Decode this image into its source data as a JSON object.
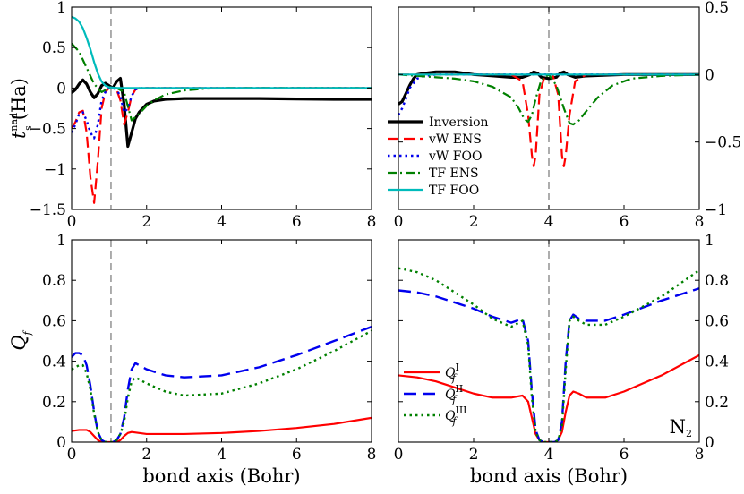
{
  "chart_data": [
    {
      "id": "tl",
      "type": "line",
      "title": "",
      "xlabel": "",
      "ylabel": "t_s^nad (Ha)",
      "ylabel_main": "t",
      "ylabel_sub": "s",
      "ylabel_sup": "nad",
      "ylabel_unit": "(Ha)",
      "xlim": [
        0,
        8
      ],
      "ylim": [
        -1.5,
        1
      ],
      "xticks": [
        "0",
        "2",
        "4",
        "6",
        "8"
      ],
      "yticks": [
        "-1.5",
        "-1",
        "-0.5",
        "0",
        "0.5",
        "1"
      ],
      "ytick_side": "left",
      "vline_x": 1.05,
      "series": [
        {
          "name": "Inversion",
          "color": "#000000",
          "dash": "",
          "width": 3.2,
          "x": [
            0,
            0.1,
            0.2,
            0.3,
            0.4,
            0.5,
            0.6,
            0.7,
            0.8,
            0.9,
            1.0,
            1.1,
            1.2,
            1.3,
            1.4,
            1.5,
            1.6,
            1.7,
            1.8,
            2.0,
            2.2,
            2.5,
            3,
            4,
            5,
            6,
            7,
            8
          ],
          "y": [
            -0.06,
            -0.02,
            0.05,
            0.1,
            0.05,
            -0.05,
            -0.12,
            -0.07,
            0.03,
            0.06,
            0.03,
            0.0,
            0.08,
            0.12,
            -0.2,
            -0.72,
            -0.55,
            -0.38,
            -0.3,
            -0.2,
            -0.16,
            -0.14,
            -0.13,
            -0.13,
            -0.13,
            -0.135,
            -0.14,
            -0.14
          ]
        },
        {
          "name": "vW ENS",
          "color": "#ff0000",
          "dash": "12,6",
          "width": 2.2,
          "x": [
            0,
            0.1,
            0.2,
            0.3,
            0.4,
            0.5,
            0.6,
            0.7,
            0.8,
            0.9,
            1.0,
            1.1,
            1.2,
            1.3,
            1.4,
            1.5,
            1.6,
            1.7,
            1.8,
            2.0,
            3,
            8
          ],
          "y": [
            -0.5,
            -0.42,
            -0.3,
            -0.28,
            -0.55,
            -1.1,
            -1.42,
            -0.9,
            -0.25,
            -0.05,
            0.0,
            0.0,
            -0.02,
            -0.15,
            -0.45,
            -0.3,
            -0.1,
            -0.02,
            0.0,
            0.0,
            0.0,
            0.0
          ]
        },
        {
          "name": "vW FOO",
          "color": "#0000ee",
          "dash": "2.5,4",
          "width": 2.4,
          "x": [
            0,
            0.1,
            0.2,
            0.3,
            0.4,
            0.5,
            0.6,
            0.7,
            0.8,
            0.9,
            1.0,
            1.1,
            1.2,
            1.3,
            1.4,
            1.5,
            1.6,
            1.7,
            1.8,
            2.0,
            3,
            8
          ],
          "y": [
            -0.55,
            -0.45,
            -0.32,
            -0.3,
            -0.4,
            -0.55,
            -0.62,
            -0.45,
            -0.15,
            -0.05,
            0.0,
            0.0,
            -0.02,
            -0.1,
            -0.3,
            -0.25,
            -0.1,
            -0.02,
            0.0,
            0.0,
            0.0,
            0.0
          ]
        },
        {
          "name": "TF ENS",
          "color": "#008000",
          "dash": "10,4,2,4",
          "width": 2.2,
          "x": [
            0,
            0.2,
            0.4,
            0.6,
            0.8,
            1.0,
            1.2,
            1.4,
            1.6,
            1.8,
            2.0,
            2.2,
            2.5,
            3.0,
            3.5,
            4,
            5,
            6,
            7,
            8
          ],
          "y": [
            0.55,
            0.45,
            0.25,
            0.05,
            -0.05,
            0.0,
            0.0,
            -0.05,
            -0.4,
            -0.32,
            -0.22,
            -0.15,
            -0.08,
            -0.03,
            -0.01,
            0.0,
            0.0,
            0.0,
            0.0,
            0.0
          ]
        },
        {
          "name": "TF FOO",
          "color": "#00bbbb",
          "dash": "",
          "width": 2.2,
          "x": [
            0,
            0.1,
            0.2,
            0.3,
            0.4,
            0.5,
            0.6,
            0.7,
            0.8,
            0.9,
            1.0,
            1.2,
            1.5,
            2,
            3,
            4,
            5,
            6,
            7,
            8
          ],
          "y": [
            0.88,
            0.86,
            0.82,
            0.74,
            0.62,
            0.48,
            0.32,
            0.18,
            0.08,
            0.03,
            0.01,
            0.0,
            0.0,
            0.0,
            0.0,
            0.0,
            0.0,
            0.0,
            0.0,
            0.0
          ]
        }
      ]
    },
    {
      "id": "tr",
      "type": "line",
      "title": "",
      "xlabel": "",
      "ylabel": "",
      "xlim": [
        0,
        8
      ],
      "ylim": [
        -1,
        0.5
      ],
      "xticks": [
        "0",
        "2",
        "4",
        "6",
        "8"
      ],
      "yticks": [
        "-1",
        "-0.5",
        "0",
        "0.5"
      ],
      "ytick_side": "right",
      "vline_x": 4,
      "legend": {
        "placement": "lower-left",
        "entries": [
          {
            "label": "Inversion",
            "color": "#000000",
            "dash": "",
            "width": 3.2
          },
          {
            "label": "vW ENS",
            "color": "#ff0000",
            "dash": "12,6",
            "width": 2.2
          },
          {
            "label": "vW FOO",
            "color": "#0000ee",
            "dash": "2.5,4",
            "width": 2.4
          },
          {
            "label": "TF ENS",
            "color": "#008000",
            "dash": "10,4,2,4",
            "width": 2.2
          },
          {
            "label": "TF FOO",
            "color": "#00bbbb",
            "dash": "",
            "width": 2.2
          }
        ]
      },
      "series": [
        {
          "name": "Inversion",
          "color": "#000000",
          "dash": "",
          "width": 3.2,
          "x": [
            0,
            0.1,
            0.2,
            0.3,
            0.4,
            0.5,
            0.7,
            1.0,
            1.5,
            2,
            2.5,
            3,
            3.3,
            3.5,
            3.6,
            3.7,
            3.8,
            4.0,
            4.2,
            4.3,
            4.4,
            4.5,
            4.7,
            5,
            6,
            7,
            8
          ],
          "y": [
            -0.22,
            -0.2,
            -0.14,
            -0.08,
            -0.03,
            0.0,
            0.01,
            0.02,
            0.02,
            0.0,
            -0.01,
            -0.02,
            -0.02,
            0.0,
            0.02,
            0.01,
            -0.02,
            -0.03,
            -0.02,
            0.01,
            0.02,
            0.0,
            -0.02,
            -0.01,
            0.0,
            0.0,
            0.0
          ]
        },
        {
          "name": "vW ENS",
          "color": "#ff0000",
          "dash": "12,6",
          "width": 2.2,
          "x": [
            0,
            0.2,
            0.5,
            1,
            2,
            3,
            3.3,
            3.45,
            3.55,
            3.6,
            3.65,
            3.75,
            3.9,
            4.1,
            4.25,
            4.35,
            4.4,
            4.45,
            4.55,
            4.7,
            5,
            8
          ],
          "y": [
            0.0,
            0.0,
            0.0,
            0.0,
            0.0,
            0.0,
            -0.05,
            -0.3,
            -0.6,
            -0.68,
            -0.6,
            -0.15,
            0.0,
            0.0,
            -0.15,
            -0.6,
            -0.68,
            -0.6,
            -0.3,
            -0.05,
            0.0,
            0.0
          ]
        },
        {
          "name": "vW FOO",
          "color": "#0000ee",
          "dash": "2.5,4",
          "width": 2.4,
          "x": [
            0,
            0.1,
            0.2,
            0.3,
            0.5,
            0.7,
            1,
            2,
            8
          ],
          "y": [
            -0.3,
            -0.25,
            -0.18,
            -0.1,
            -0.03,
            -0.01,
            0.0,
            0.0,
            0.0
          ]
        },
        {
          "name": "TF ENS",
          "color": "#008000",
          "dash": "10,4,2,4",
          "width": 2.2,
          "x": [
            0,
            0.5,
            1,
            1.5,
            2,
            2.5,
            3,
            3.2,
            3.35,
            3.45,
            3.55,
            3.65,
            3.8,
            4.0,
            4.2,
            4.4,
            4.55,
            4.65,
            4.8,
            5.0,
            5.3,
            5.7,
            6.2,
            7,
            8
          ],
          "y": [
            0.0,
            -0.01,
            -0.02,
            -0.03,
            -0.05,
            -0.09,
            -0.17,
            -0.25,
            -0.33,
            -0.35,
            -0.3,
            -0.18,
            -0.04,
            0.0,
            -0.08,
            -0.25,
            -0.36,
            -0.37,
            -0.34,
            -0.27,
            -0.17,
            -0.08,
            -0.03,
            -0.01,
            0.0
          ]
        },
        {
          "name": "TF FOO",
          "color": "#00bbbb",
          "dash": "",
          "width": 2.2,
          "x": [
            0,
            0.5,
            1,
            2,
            4,
            6,
            8
          ],
          "y": [
            0.0,
            0.0,
            0.0,
            0.0,
            0.0,
            0.0,
            0.0
          ]
        }
      ]
    },
    {
      "id": "bl",
      "type": "line",
      "title": "",
      "xlabel": "bond axis (Bohr)",
      "ylabel": "Q_f",
      "ylabel_main": "Q",
      "ylabel_sub": "f",
      "xlim": [
        0,
        8
      ],
      "ylim": [
        0,
        1
      ],
      "xticks": [
        "0",
        "2",
        "4",
        "6",
        "8"
      ],
      "yticks": [
        "0",
        "0.2",
        "0.4",
        "0.6",
        "0.8",
        "1"
      ],
      "ytick_side": "left",
      "vline_x": 1.05,
      "series": [
        {
          "name": "Q_f^I",
          "color": "#ff0000",
          "dash": "",
          "width": 2.2,
          "x": [
            0,
            0.2,
            0.4,
            0.5,
            0.6,
            0.7,
            0.8,
            0.9,
            1.0,
            1.1,
            1.2,
            1.3,
            1.4,
            1.5,
            1.6,
            1.8,
            2,
            3,
            4,
            5,
            6,
            7,
            8
          ],
          "y": [
            0.055,
            0.06,
            0.06,
            0.05,
            0.03,
            0.01,
            0.0,
            0.0,
            0.0,
            0.0,
            0.0,
            0.01,
            0.03,
            0.045,
            0.05,
            0.045,
            0.04,
            0.04,
            0.045,
            0.055,
            0.07,
            0.09,
            0.12
          ]
        },
        {
          "name": "Q_f^II",
          "color": "#0000ee",
          "dash": "14,7",
          "width": 2.4,
          "x": [
            0,
            0.1,
            0.2,
            0.3,
            0.4,
            0.5,
            0.6,
            0.7,
            0.8,
            0.9,
            1.0,
            1.1,
            1.2,
            1.3,
            1.4,
            1.5,
            1.6,
            1.7,
            1.8,
            2.0,
            2.5,
            3.0,
            4,
            5,
            6,
            7,
            8
          ],
          "y": [
            0.42,
            0.44,
            0.44,
            0.43,
            0.38,
            0.28,
            0.15,
            0.05,
            0.01,
            0.0,
            0.0,
            0.0,
            0.01,
            0.04,
            0.12,
            0.26,
            0.36,
            0.39,
            0.38,
            0.36,
            0.33,
            0.32,
            0.33,
            0.37,
            0.43,
            0.5,
            0.57
          ]
        },
        {
          "name": "Q_f^III",
          "color": "#008000",
          "dash": "2.5,4",
          "width": 2.4,
          "x": [
            0,
            0.1,
            0.2,
            0.3,
            0.4,
            0.5,
            0.6,
            0.7,
            0.8,
            0.9,
            1.0,
            1.1,
            1.2,
            1.3,
            1.4,
            1.5,
            1.6,
            1.7,
            1.8,
            2.0,
            2.5,
            3.0,
            4,
            5,
            6,
            7,
            8
          ],
          "y": [
            0.36,
            0.37,
            0.38,
            0.38,
            0.34,
            0.26,
            0.14,
            0.05,
            0.01,
            0.0,
            0.0,
            0.0,
            0.01,
            0.04,
            0.1,
            0.22,
            0.3,
            0.32,
            0.31,
            0.29,
            0.25,
            0.23,
            0.24,
            0.29,
            0.36,
            0.45,
            0.55
          ]
        }
      ]
    },
    {
      "id": "br",
      "type": "line",
      "title": "",
      "xlabel": "bond axis (Bohr)",
      "ylabel": "",
      "xlim": [
        0,
        8
      ],
      "ylim": [
        0,
        1
      ],
      "xticks": [
        "0",
        "2",
        "4",
        "6",
        "8"
      ],
      "yticks": [
        "0",
        "0.2",
        "0.4",
        "0.6",
        "0.8",
        "1"
      ],
      "ytick_side": "right",
      "vline_x": 4,
      "annotation": {
        "text": "N",
        "subscript": "2",
        "placement": "bottom-right"
      },
      "legend": {
        "placement": "lower-left",
        "entries": [
          {
            "label": "Q",
            "sub": "f",
            "sup": "I",
            "color": "#ff0000",
            "dash": "",
            "width": 2.2
          },
          {
            "label": "Q",
            "sub": "f",
            "sup": "II",
            "color": "#0000ee",
            "dash": "14,7",
            "width": 2.4
          },
          {
            "label": "Q",
            "sub": "f",
            "sup": "III",
            "color": "#008000",
            "dash": "2.5,4",
            "width": 2.4
          }
        ]
      },
      "series": [
        {
          "name": "Q_f^I",
          "color": "#ff0000",
          "dash": "",
          "width": 2.2,
          "x": [
            0,
            0.5,
            1,
            1.5,
            2,
            2.5,
            3,
            3.3,
            3.45,
            3.55,
            3.65,
            3.75,
            3.85,
            4.0,
            4.15,
            4.25,
            4.35,
            4.45,
            4.55,
            4.65,
            4.8,
            5,
            5.5,
            6,
            7,
            8
          ],
          "y": [
            0.33,
            0.32,
            0.3,
            0.27,
            0.24,
            0.22,
            0.22,
            0.23,
            0.2,
            0.12,
            0.04,
            0.01,
            0.0,
            0.0,
            0.0,
            0.01,
            0.05,
            0.15,
            0.23,
            0.25,
            0.24,
            0.22,
            0.22,
            0.25,
            0.33,
            0.43
          ]
        },
        {
          "name": "Q_f^II",
          "color": "#0000ee",
          "dash": "14,7",
          "width": 2.4,
          "x": [
            0,
            0.5,
            1,
            1.5,
            2,
            2.5,
            3,
            3.3,
            3.45,
            3.55,
            3.65,
            3.75,
            3.85,
            4.0,
            4.15,
            4.25,
            4.35,
            4.45,
            4.55,
            4.65,
            4.8,
            5,
            5.5,
            6,
            7,
            8
          ],
          "y": [
            0.75,
            0.74,
            0.72,
            0.69,
            0.66,
            0.62,
            0.59,
            0.61,
            0.5,
            0.25,
            0.06,
            0.01,
            0.0,
            0.0,
            0.0,
            0.01,
            0.1,
            0.4,
            0.6,
            0.63,
            0.61,
            0.6,
            0.6,
            0.63,
            0.7,
            0.76
          ]
        },
        {
          "name": "Q_f^III",
          "color": "#008000",
          "dash": "2.5,4",
          "width": 2.4,
          "x": [
            0,
            0.5,
            1,
            1.5,
            2,
            2.5,
            3,
            3.3,
            3.45,
            3.55,
            3.65,
            3.75,
            3.85,
            4.0,
            4.15,
            4.25,
            4.35,
            4.45,
            4.55,
            4.65,
            4.8,
            5,
            5.5,
            6,
            7,
            8
          ],
          "y": [
            0.86,
            0.84,
            0.8,
            0.74,
            0.68,
            0.61,
            0.57,
            0.6,
            0.48,
            0.22,
            0.05,
            0.01,
            0.0,
            0.0,
            0.0,
            0.01,
            0.08,
            0.36,
            0.6,
            0.62,
            0.6,
            0.58,
            0.58,
            0.62,
            0.72,
            0.85
          ]
        }
      ]
    }
  ]
}
